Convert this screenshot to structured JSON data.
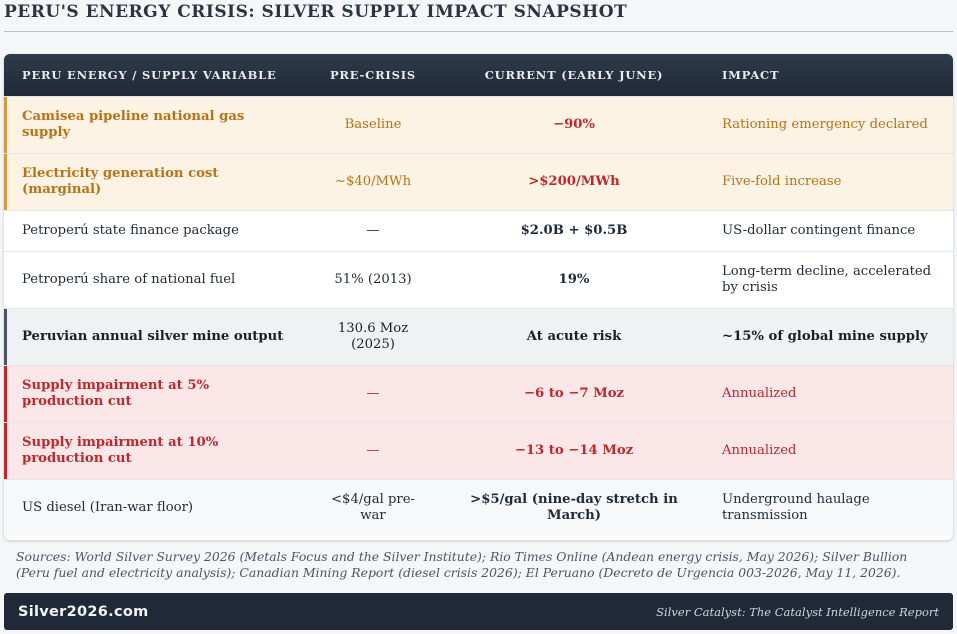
{
  "title": "PERU'S ENERGY CRISIS: SILVER SUPPLY IMPACT SNAPSHOT",
  "table": {
    "headers": [
      "PERU ENERGY / SUPPLY VARIABLE",
      "PRE-CRISIS",
      "CURRENT (EARLY JUNE)",
      "IMPACT"
    ],
    "rows": [
      [
        "Camisea pipeline national gas supply",
        "Baseline",
        "−90%",
        "Rationing emergency declared"
      ],
      [
        "Electricity generation cost (marginal)",
        "~$40/MWh",
        ">$200/MWh",
        "Five-fold increase"
      ],
      [
        "Petroperú state finance package",
        "—",
        "$2.0B + $0.5B",
        "US-dollar contingent finance"
      ],
      [
        "Petroperú share of national fuel",
        "51% (2013)",
        "19%",
        "Long-term decline, accelerated by crisis"
      ],
      [
        "Peruvian annual silver mine output",
        "130.6 Moz (2025)",
        "At acute risk",
        "~15% of global mine supply"
      ],
      [
        "Supply impairment at 5% production cut",
        "—",
        "−6 to −7 Moz",
        "Annualized"
      ],
      [
        "Supply impairment at 10% production cut",
        "—",
        "−13 to −14 Moz",
        "Annualized"
      ],
      [
        "US diesel (Iran-war floor)",
        "<$4/gal pre-war",
        ">$5/gal (nine-day stretch in March)",
        "Underground haulage transmission"
      ]
    ]
  },
  "sources": "Sources: World Silver Survey 2026 (Metals Focus and the Silver Institute); Rio Times Online (Andean energy crisis, May 2026); Silver Bullion (Peru fuel and electricity analysis); Canadian Mining Report (diesel crisis 2026); El Peruano (Decreto de Urgencia 003-2026, May 11, 2026).",
  "footer": {
    "brand": "Silver2026.com",
    "tagline": "Silver Catalyst: The Catalyst Intelligence Report"
  },
  "colors": {
    "header_bg": "#1f2937",
    "orange_text": "#b87218",
    "red_text": "#c0272d",
    "orange_row_bg": "#fdf3e4",
    "red_row_bg": "#fbe7e8"
  }
}
